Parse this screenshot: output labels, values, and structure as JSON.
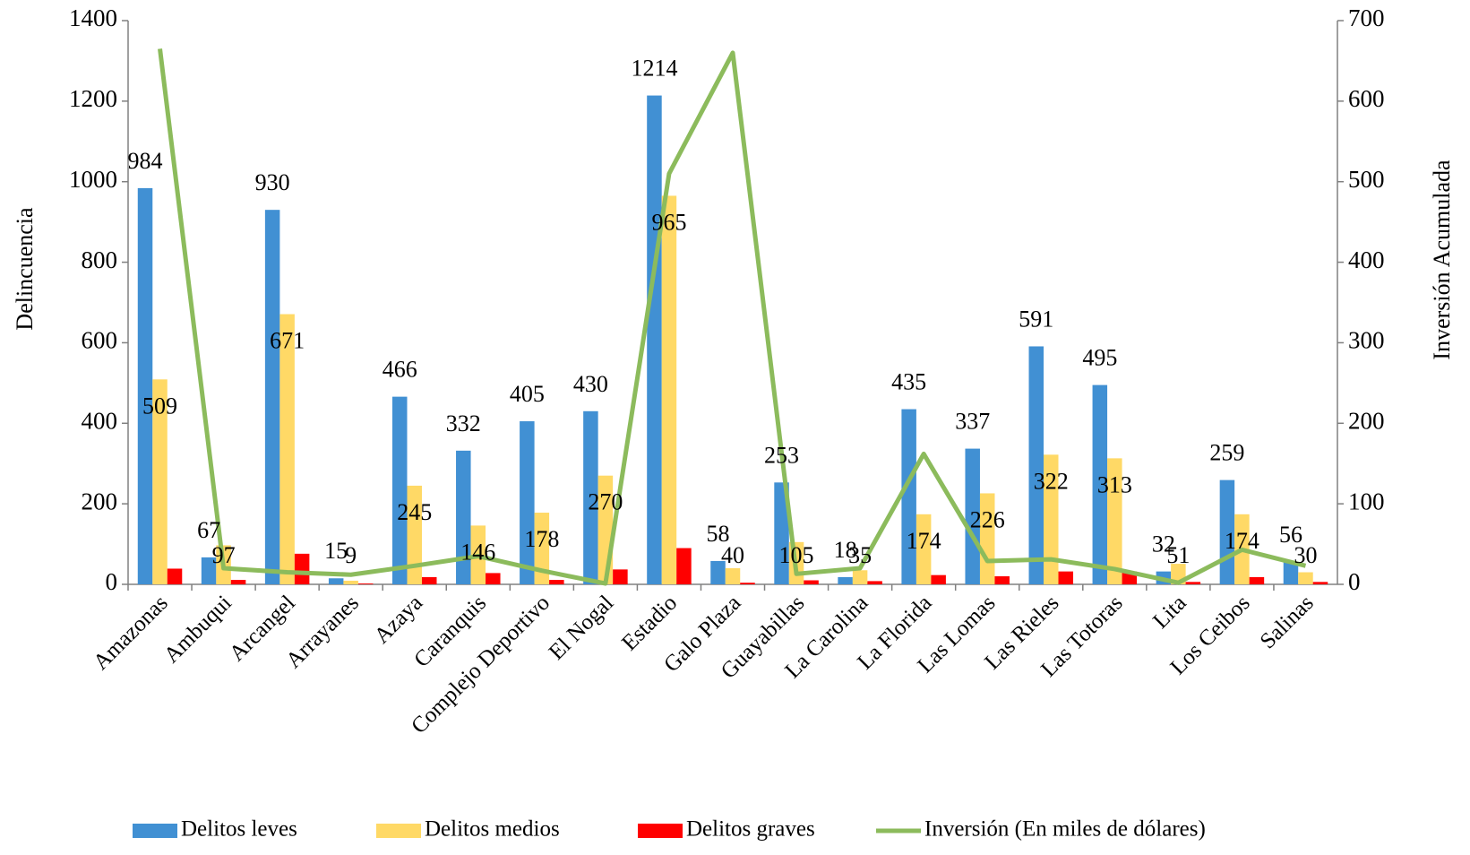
{
  "chart_data": {
    "type": "bar",
    "categories": [
      "Amazonas",
      "Ambuqui",
      "Arcangel",
      "Arrayanes",
      "Azaya",
      "Caranquis",
      "Complejo  Deportivo",
      "El Nogal",
      "Estadio",
      "Galo Plaza",
      "Guayabillas",
      "La Carolina",
      "La Florida",
      "Las Lomas",
      "Las Rieles",
      "Las Totoras",
      "Lita",
      "Los Ceibos",
      "Salinas"
    ],
    "series": [
      {
        "name": "Delitos leves",
        "color": "#4190d3",
        "values": [
          984,
          67,
          930,
          15,
          466,
          332,
          405,
          430,
          1214,
          58,
          253,
          18,
          435,
          337,
          591,
          495,
          32,
          259,
          56
        ],
        "labels_shown": true
      },
      {
        "name": "Delitos medios",
        "color": "#ffd966",
        "values": [
          509,
          97,
          671,
          9,
          245,
          146,
          178,
          270,
          965,
          40,
          105,
          35,
          174,
          226,
          322,
          313,
          51,
          174,
          30
        ],
        "labels_shown": true
      },
      {
        "name": "Delitos graves",
        "color": "#ff0000",
        "values": [
          39,
          11,
          76,
          2,
          18,
          28,
          11,
          37,
          90,
          4,
          10,
          8,
          23,
          20,
          32,
          32,
          6,
          18,
          6
        ],
        "labels_shown": false
      },
      {
        "name": "Inversión (En miles de dólares)",
        "color": "#8cbb5c",
        "type": "line",
        "axis": "y2",
        "values": [
          665,
          20,
          15,
          12,
          23,
          35,
          17,
          1,
          510,
          660,
          13,
          20,
          162,
          29,
          31,
          19,
          2,
          43,
          23
        ],
        "labels_shown": false
      }
    ],
    "y_label": "Delincuencia",
    "y2_label": "Inversión Acumulada",
    "ylim": [
      0,
      1400
    ],
    "yticks": [
      0,
      200,
      400,
      600,
      800,
      1000,
      1200,
      1400
    ],
    "y2lim": [
      0,
      700
    ],
    "y2ticks": [
      0,
      100,
      200,
      300,
      400,
      500,
      600,
      700
    ],
    "legend": "bottom"
  }
}
